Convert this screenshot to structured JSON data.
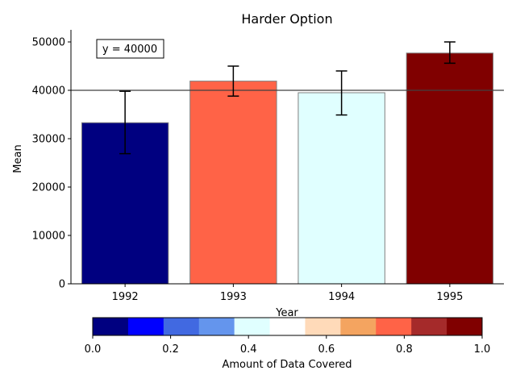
{
  "chart_data": {
    "type": "bar",
    "title": "Harder Option",
    "xlabel": "Year",
    "ylabel": "Mean",
    "categories": [
      "1992",
      "1993",
      "1994",
      "1995"
    ],
    "values": [
      33300,
      41900,
      39500,
      47700
    ],
    "errors": [
      [
        26900,
        39800
      ],
      [
        38800,
        45000
      ],
      [
        34900,
        44000
      ],
      [
        45600,
        50000
      ]
    ],
    "bar_colors": [
      "#000080",
      "#ff6347",
      "#e0ffff",
      "#800000"
    ],
    "ylim": [
      0,
      52500
    ],
    "yticks": [
      0,
      10000,
      20000,
      30000,
      40000,
      50000
    ],
    "ytick_labels": [
      "0",
      "10000",
      "20000",
      "30000",
      "40000",
      "50000"
    ],
    "reference_line": {
      "value": 40000,
      "label": "y = 40000"
    },
    "colorbar": {
      "label": "Amount of Data Covered",
      "range": [
        0,
        1
      ],
      "ticks": [
        "0.0",
        "0.2",
        "0.4",
        "0.6",
        "0.8",
        "1.0"
      ],
      "colors": [
        "#000080",
        "#0000ff",
        "#4169e1",
        "#6495ed",
        "#e0ffff",
        "#ffffff",
        "#ffdab9",
        "#f4a460",
        "#ff6347",
        "#a52a2a",
        "#800000"
      ]
    }
  }
}
